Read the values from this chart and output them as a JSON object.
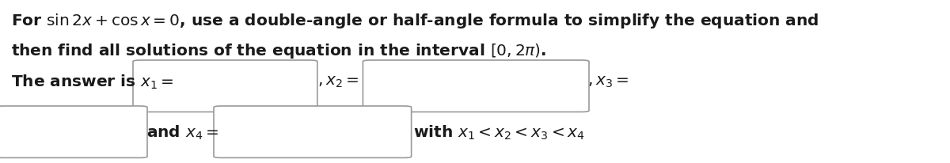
{
  "bg_color": "#ffffff",
  "text_color": "#1a1a1a",
  "box_color": "#ffffff",
  "box_edge_color": "#999999",
  "figsize": [
    12.0,
    2.07
  ],
  "dpi": 100,
  "fontsize": 14.5,
  "fontweight": "bold",
  "fontfamily": "DejaVu Sans"
}
